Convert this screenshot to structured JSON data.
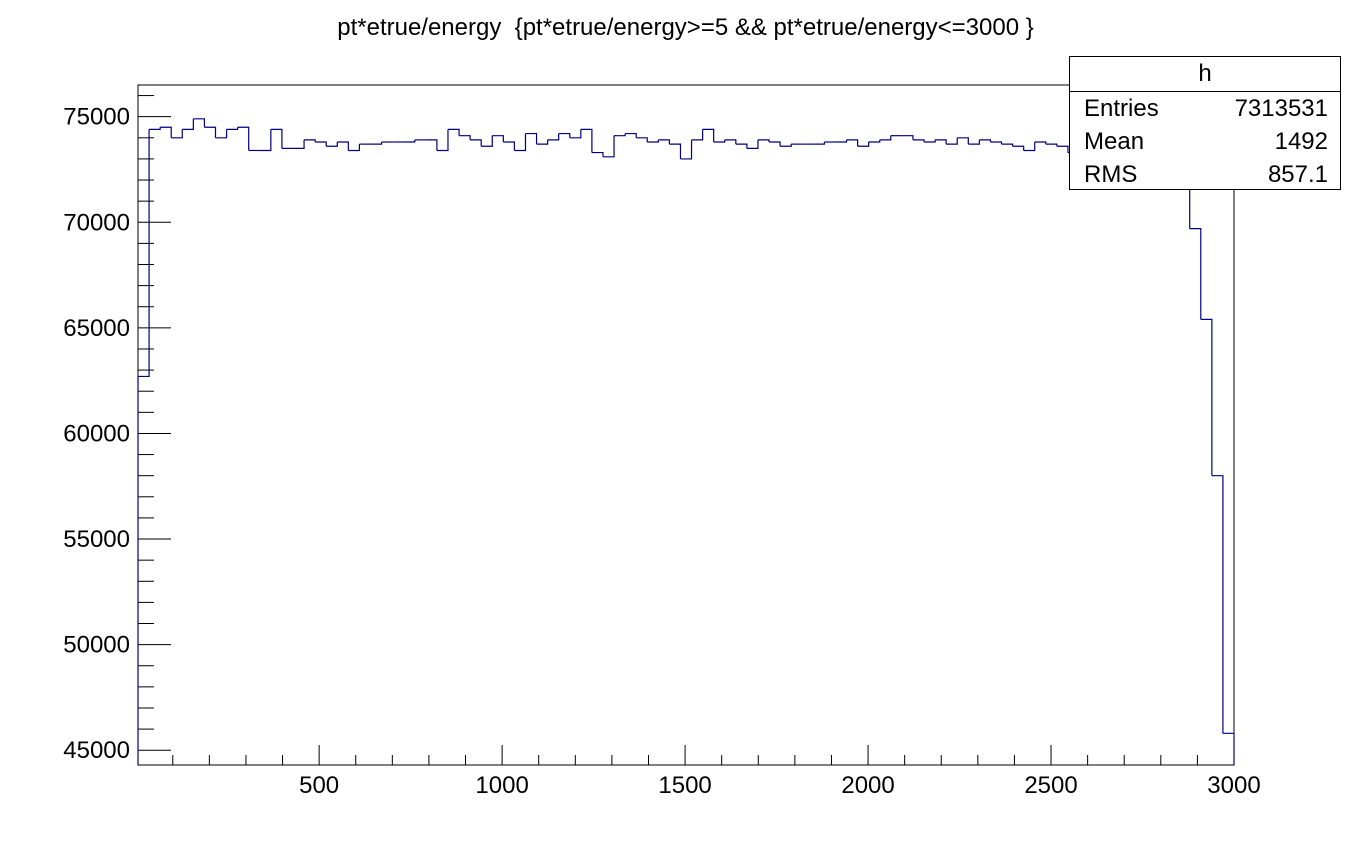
{
  "chart_data": {
    "type": "histogram",
    "title": "pt*etrue/energy  {pt*etrue/energy>=5 && pt*etrue/energy<=3000 }",
    "xlabel": "",
    "ylabel": "",
    "xlim": [
      5,
      3000
    ],
    "ylim": [
      44300,
      76500
    ],
    "bin_edges_start": 5,
    "bin_edges_end": 3000,
    "line_color": "#000080",
    "x_ticks": [
      "500",
      "1000",
      "1500",
      "2000",
      "2500",
      "3000"
    ],
    "y_ticks": [
      "45000",
      "50000",
      "55000",
      "60000",
      "65000",
      "70000",
      "75000"
    ],
    "x_tick_values": [
      500,
      1000,
      1500,
      2000,
      2500,
      3000
    ],
    "y_tick_values": [
      45000,
      50000,
      55000,
      60000,
      65000,
      70000,
      75000
    ],
    "values": [
      62700,
      74400,
      74500,
      74000,
      74400,
      74900,
      74500,
      74000,
      74400,
      74500,
      73400,
      73400,
      74400,
      73500,
      73500,
      73900,
      73800,
      73600,
      73800,
      73400,
      73700,
      73700,
      73800,
      73800,
      73800,
      73900,
      73900,
      73400,
      74400,
      74100,
      73900,
      73600,
      74100,
      73800,
      73400,
      74200,
      73700,
      73900,
      74200,
      74000,
      74400,
      73300,
      73100,
      74100,
      74200,
      74000,
      73800,
      73900,
      73700,
      73000,
      73900,
      74400,
      73800,
      73900,
      73700,
      73500,
      73900,
      73800,
      73600,
      73700,
      73700,
      73700,
      73800,
      73800,
      73900,
      73600,
      73800,
      73900,
      74100,
      74100,
      73900,
      73800,
      73900,
      73700,
      74000,
      73700,
      73900,
      73800,
      73700,
      73600,
      73400,
      73800,
      73700,
      73600,
      73300,
      73900,
      73800,
      73800,
      73800,
      73700,
      73700,
      73800,
      73700,
      73600,
      71800,
      69700,
      65400,
      58000,
      45800
    ],
    "stats": {
      "name": "h",
      "entries_label": "Entries",
      "entries": "7313531",
      "mean_label": "Mean",
      "mean": "1492",
      "rms_label": "RMS",
      "rms": "857.1"
    }
  }
}
